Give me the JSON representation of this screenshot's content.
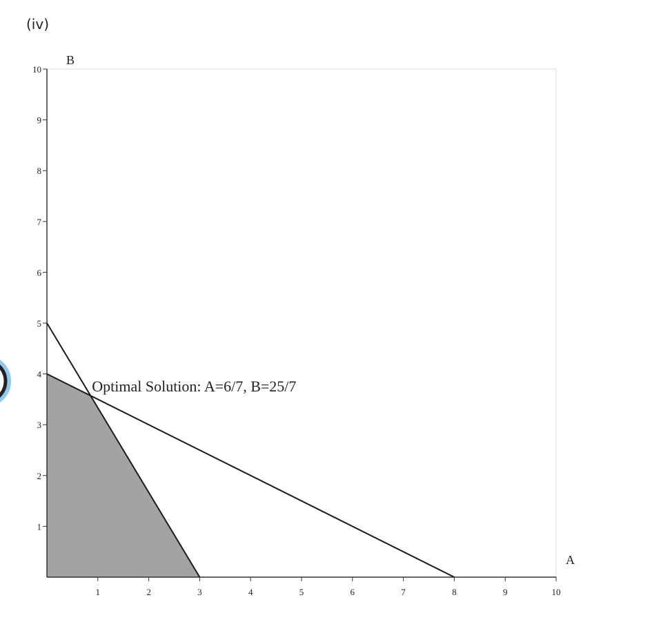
{
  "chart_data": {
    "type": "line",
    "title": "(iv)",
    "x_label": "A",
    "y_label": "B",
    "xlim": [
      0,
      10
    ],
    "ylim": [
      0,
      10
    ],
    "xticks": [
      1,
      2,
      3,
      4,
      5,
      6,
      7,
      8,
      9,
      10
    ],
    "yticks": [
      1,
      2,
      3,
      4,
      5,
      6,
      7,
      8,
      9,
      10
    ],
    "series": [
      {
        "x": [
          0,
          3
        ],
        "values": [
          5,
          0
        ],
        "color": "#1a1a1a"
      },
      {
        "x": [
          0,
          8
        ],
        "values": [
          4,
          0
        ],
        "color": "#1a1a1a"
      }
    ],
    "region": {
      "x": [
        0,
        0,
        0.857142857,
        3
      ],
      "values": [
        0,
        4,
        3.571428571,
        0
      ],
      "color": "#a3a3a3"
    },
    "annotation": {
      "text": "Optimal Solution: A=6/7, B=25/7",
      "x": 0.857142857,
      "y": 3.571428571
    }
  }
}
